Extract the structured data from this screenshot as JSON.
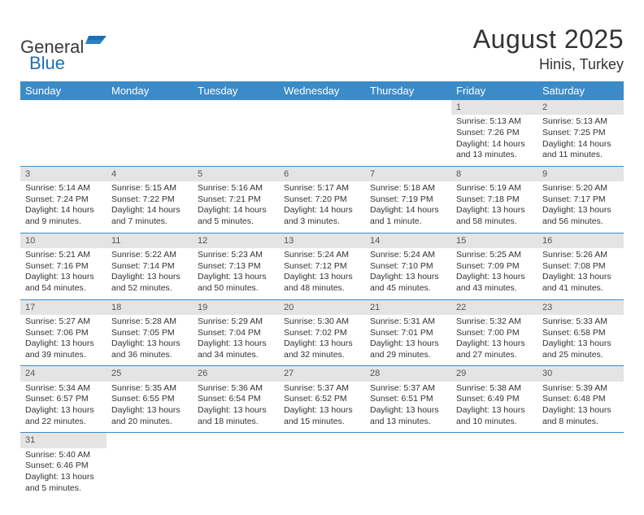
{
  "logo": {
    "text1": "General",
    "text2": "Blue"
  },
  "title": "August 2025",
  "location": "Hinis, Turkey",
  "colors": {
    "header_bg": "#3b8bc8",
    "header_text": "#ffffff",
    "daynum_bg": "#e4e4e4",
    "row_border": "#3b8bc8"
  },
  "day_headers": [
    "Sunday",
    "Monday",
    "Tuesday",
    "Wednesday",
    "Thursday",
    "Friday",
    "Saturday"
  ],
  "weeks": [
    [
      null,
      null,
      null,
      null,
      null,
      {
        "n": "1",
        "sr": "5:13 AM",
        "ss": "7:26 PM",
        "dl": "14 hours and 13 minutes."
      },
      {
        "n": "2",
        "sr": "5:13 AM",
        "ss": "7:25 PM",
        "dl": "14 hours and 11 minutes."
      }
    ],
    [
      {
        "n": "3",
        "sr": "5:14 AM",
        "ss": "7:24 PM",
        "dl": "14 hours and 9 minutes."
      },
      {
        "n": "4",
        "sr": "5:15 AM",
        "ss": "7:22 PM",
        "dl": "14 hours and 7 minutes."
      },
      {
        "n": "5",
        "sr": "5:16 AM",
        "ss": "7:21 PM",
        "dl": "14 hours and 5 minutes."
      },
      {
        "n": "6",
        "sr": "5:17 AM",
        "ss": "7:20 PM",
        "dl": "14 hours and 3 minutes."
      },
      {
        "n": "7",
        "sr": "5:18 AM",
        "ss": "7:19 PM",
        "dl": "14 hours and 1 minute."
      },
      {
        "n": "8",
        "sr": "5:19 AM",
        "ss": "7:18 PM",
        "dl": "13 hours and 58 minutes."
      },
      {
        "n": "9",
        "sr": "5:20 AM",
        "ss": "7:17 PM",
        "dl": "13 hours and 56 minutes."
      }
    ],
    [
      {
        "n": "10",
        "sr": "5:21 AM",
        "ss": "7:16 PM",
        "dl": "13 hours and 54 minutes."
      },
      {
        "n": "11",
        "sr": "5:22 AM",
        "ss": "7:14 PM",
        "dl": "13 hours and 52 minutes."
      },
      {
        "n": "12",
        "sr": "5:23 AM",
        "ss": "7:13 PM",
        "dl": "13 hours and 50 minutes."
      },
      {
        "n": "13",
        "sr": "5:24 AM",
        "ss": "7:12 PM",
        "dl": "13 hours and 48 minutes."
      },
      {
        "n": "14",
        "sr": "5:24 AM",
        "ss": "7:10 PM",
        "dl": "13 hours and 45 minutes."
      },
      {
        "n": "15",
        "sr": "5:25 AM",
        "ss": "7:09 PM",
        "dl": "13 hours and 43 minutes."
      },
      {
        "n": "16",
        "sr": "5:26 AM",
        "ss": "7:08 PM",
        "dl": "13 hours and 41 minutes."
      }
    ],
    [
      {
        "n": "17",
        "sr": "5:27 AM",
        "ss": "7:06 PM",
        "dl": "13 hours and 39 minutes."
      },
      {
        "n": "18",
        "sr": "5:28 AM",
        "ss": "7:05 PM",
        "dl": "13 hours and 36 minutes."
      },
      {
        "n": "19",
        "sr": "5:29 AM",
        "ss": "7:04 PM",
        "dl": "13 hours and 34 minutes."
      },
      {
        "n": "20",
        "sr": "5:30 AM",
        "ss": "7:02 PM",
        "dl": "13 hours and 32 minutes."
      },
      {
        "n": "21",
        "sr": "5:31 AM",
        "ss": "7:01 PM",
        "dl": "13 hours and 29 minutes."
      },
      {
        "n": "22",
        "sr": "5:32 AM",
        "ss": "7:00 PM",
        "dl": "13 hours and 27 minutes."
      },
      {
        "n": "23",
        "sr": "5:33 AM",
        "ss": "6:58 PM",
        "dl": "13 hours and 25 minutes."
      }
    ],
    [
      {
        "n": "24",
        "sr": "5:34 AM",
        "ss": "6:57 PM",
        "dl": "13 hours and 22 minutes."
      },
      {
        "n": "25",
        "sr": "5:35 AM",
        "ss": "6:55 PM",
        "dl": "13 hours and 20 minutes."
      },
      {
        "n": "26",
        "sr": "5:36 AM",
        "ss": "6:54 PM",
        "dl": "13 hours and 18 minutes."
      },
      {
        "n": "27",
        "sr": "5:37 AM",
        "ss": "6:52 PM",
        "dl": "13 hours and 15 minutes."
      },
      {
        "n": "28",
        "sr": "5:37 AM",
        "ss": "6:51 PM",
        "dl": "13 hours and 13 minutes."
      },
      {
        "n": "29",
        "sr": "5:38 AM",
        "ss": "6:49 PM",
        "dl": "13 hours and 10 minutes."
      },
      {
        "n": "30",
        "sr": "5:39 AM",
        "ss": "6:48 PM",
        "dl": "13 hours and 8 minutes."
      }
    ],
    [
      {
        "n": "31",
        "sr": "5:40 AM",
        "ss": "6:46 PM",
        "dl": "13 hours and 5 minutes."
      },
      null,
      null,
      null,
      null,
      null,
      null
    ]
  ],
  "labels": {
    "sunrise": "Sunrise: ",
    "sunset": "Sunset: ",
    "daylight": "Daylight: "
  }
}
